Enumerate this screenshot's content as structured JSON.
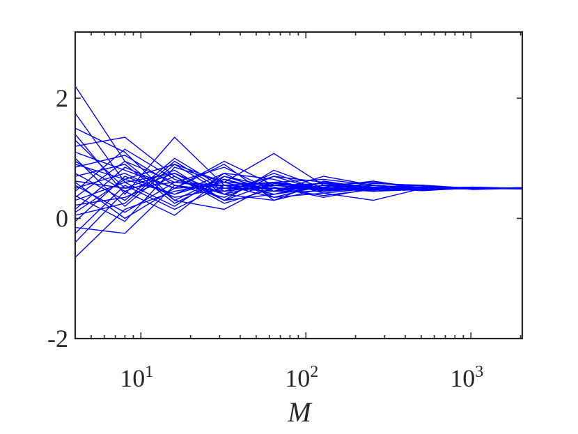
{
  "chart_data": {
    "type": "line",
    "xlabel": "M",
    "ylabel": "",
    "title": "",
    "x_scale": "log",
    "xlim": [
      4,
      2048
    ],
    "ylim": [
      -2,
      3.1
    ],
    "x_ticks": [
      {
        "value": 10,
        "base": "10",
        "exp": "1"
      },
      {
        "value": 100,
        "base": "10",
        "exp": "2"
      },
      {
        "value": 1000,
        "base": "10",
        "exp": "3"
      }
    ],
    "y_ticks": [
      {
        "value": -2,
        "label": "-2"
      },
      {
        "value": 0,
        "label": "0"
      },
      {
        "value": 2,
        "label": "2"
      }
    ],
    "grid": false,
    "legend": "none",
    "line_color": "#0000ff",
    "x": [
      4,
      8,
      16,
      32,
      64,
      128,
      256,
      512,
      1024,
      2048
    ],
    "series": [
      {
        "values": [
          2.2,
          0.95,
          0.6,
          0.55,
          0.5,
          0.48,
          0.5,
          0.49,
          0.5,
          0.5
        ]
      },
      {
        "values": [
          1.75,
          0.6,
          0.75,
          0.4,
          0.6,
          0.45,
          0.52,
          0.5,
          0.49,
          0.5
        ]
      },
      {
        "values": [
          1.5,
          1.1,
          0.3,
          0.7,
          0.45,
          0.55,
          0.48,
          0.51,
          0.5,
          0.49
        ]
      },
      {
        "values": [
          1.4,
          0.4,
          1.35,
          0.55,
          0.6,
          0.5,
          0.55,
          0.5,
          0.5,
          0.5
        ]
      },
      {
        "values": [
          1.2,
          1.35,
          0.7,
          0.3,
          0.4,
          0.6,
          0.45,
          0.48,
          0.51,
          0.5
        ]
      },
      {
        "values": [
          1.1,
          0.8,
          0.5,
          0.95,
          0.55,
          0.5,
          0.5,
          0.52,
          0.49,
          0.51
        ]
      },
      {
        "values": [
          1.0,
          0.2,
          0.9,
          0.6,
          1.08,
          0.55,
          0.6,
          0.5,
          0.5,
          0.5
        ]
      },
      {
        "values": [
          0.9,
          0.65,
          0.4,
          0.75,
          0.35,
          0.42,
          0.5,
          0.47,
          0.5,
          0.49
        ]
      },
      {
        "values": [
          0.85,
          1.05,
          0.55,
          0.45,
          0.7,
          0.6,
          0.52,
          0.55,
          0.5,
          0.5
        ]
      },
      {
        "values": [
          0.75,
          0.3,
          1.0,
          0.5,
          0.5,
          0.38,
          0.48,
          0.5,
          0.52,
          0.5
        ]
      },
      {
        "values": [
          0.7,
          0.9,
          0.25,
          0.65,
          0.4,
          0.52,
          0.62,
          0.5,
          0.49,
          0.5
        ]
      },
      {
        "values": [
          0.62,
          0.5,
          0.8,
          0.3,
          0.8,
          0.5,
          0.47,
          0.53,
          0.5,
          0.5
        ]
      },
      {
        "values": [
          0.55,
          0.1,
          0.6,
          0.85,
          0.45,
          0.45,
          0.5,
          0.48,
          0.5,
          0.51
        ]
      },
      {
        "values": [
          0.5,
          0.75,
          0.35,
          0.5,
          0.6,
          0.65,
          0.55,
          0.5,
          0.5,
          0.5
        ]
      },
      {
        "values": [
          0.45,
          1.15,
          0.65,
          0.4,
          0.3,
          0.5,
          0.45,
          0.52,
          0.49,
          0.5
        ]
      },
      {
        "values": [
          0.38,
          -0.05,
          0.85,
          0.6,
          0.55,
          0.58,
          0.5,
          0.46,
          0.51,
          0.5
        ]
      },
      {
        "values": [
          0.3,
          0.6,
          0.2,
          0.75,
          0.65,
          0.42,
          0.3,
          0.5,
          0.5,
          0.5
        ]
      },
      {
        "values": [
          0.22,
          0.35,
          0.7,
          0.25,
          0.5,
          0.5,
          0.58,
          0.55,
          0.48,
          0.5
        ]
      },
      {
        "values": [
          0.15,
          0.85,
          0.5,
          0.55,
          0.35,
          0.55,
          0.5,
          0.49,
          0.5,
          0.5
        ]
      },
      {
        "values": [
          0.05,
          0.25,
          0.95,
          0.45,
          0.55,
          0.47,
          0.52,
          0.5,
          0.52,
          0.49
        ]
      },
      {
        "values": [
          -0.05,
          0.7,
          0.4,
          0.65,
          0.45,
          0.6,
          0.48,
          0.5,
          0.5,
          0.5
        ]
      },
      {
        "values": [
          -0.15,
          -0.25,
          0.55,
          0.35,
          0.7,
          0.45,
          0.55,
          0.47,
          0.5,
          0.5
        ]
      },
      {
        "values": [
          -0.25,
          0.55,
          0.15,
          0.55,
          0.5,
          0.52,
          0.45,
          0.5,
          0.49,
          0.5
        ]
      },
      {
        "values": [
          -0.4,
          0.45,
          0.75,
          0.3,
          0.6,
          0.5,
          0.5,
          0.52,
          0.5,
          0.51
        ]
      },
      {
        "values": [
          -0.65,
          0.15,
          0.45,
          0.6,
          0.4,
          0.55,
          0.52,
          0.5,
          0.5,
          0.5
        ]
      },
      {
        "values": [
          0.95,
          0.45,
          0.05,
          0.7,
          0.52,
          0.35,
          0.5,
          0.55,
          0.5,
          0.49
        ]
      },
      {
        "values": [
          0.6,
          0.0,
          0.5,
          0.9,
          0.3,
          0.62,
          0.5,
          0.48,
          0.51,
          0.5
        ]
      },
      {
        "values": [
          0.35,
          0.95,
          0.3,
          0.15,
          0.58,
          0.5,
          0.45,
          0.5,
          0.5,
          0.5
        ]
      },
      {
        "values": [
          1.3,
          0.5,
          0.6,
          0.5,
          0.45,
          0.7,
          0.55,
          0.5,
          0.49,
          0.5
        ]
      },
      {
        "values": [
          0.1,
          0.65,
          0.9,
          0.4,
          0.75,
          0.45,
          0.5,
          0.52,
          0.5,
          0.5
        ]
      }
    ]
  }
}
